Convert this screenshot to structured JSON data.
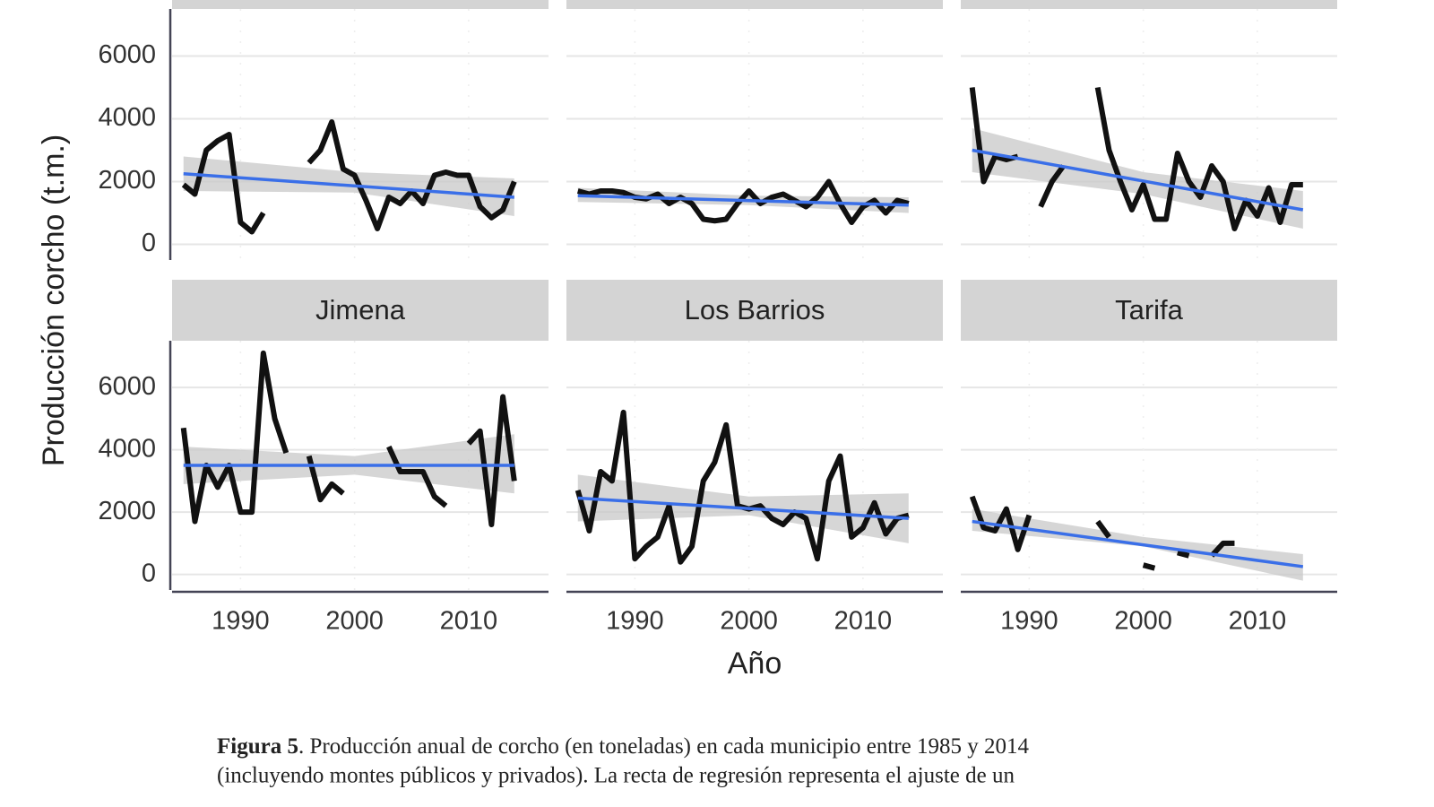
{
  "chart_data": [
    {
      "type": "line",
      "x": [
        1985,
        1986,
        1987,
        1988,
        1989,
        1990,
        1991,
        1992,
        1993,
        1994,
        1995,
        1996,
        1997,
        1998,
        1999,
        2000,
        2001,
        2002,
        2003,
        2004,
        2005,
        2006,
        2007,
        2008,
        2009,
        2010,
        2011,
        2012,
        2013,
        2014
      ],
      "values": [
        1900,
        1600,
        3000,
        3300,
        3500,
        700,
        400,
        1000,
        null,
        null,
        null,
        2600,
        3000,
        3900,
        2400,
        2200,
        1400,
        500,
        1500,
        1300,
        1700,
        1300,
        2200,
        2300,
        2200,
        2200,
        1200,
        850,
        1100,
        2000
      ],
      "color": "#111111",
      "trend": {
        "x": [
          1985,
          2014
        ],
        "values": [
          2250,
          1500
        ],
        "color": "#3a6fe8"
      },
      "band": {
        "x": [
          1985,
          2000,
          2014
        ],
        "lower": [
          1700,
          1650,
          900
        ],
        "upper": [
          2800,
          2300,
          2100
        ]
      },
      "xlim": [
        1984,
        2017
      ],
      "ylim": [
        -500,
        7500
      ],
      "xticks": [
        1990,
        2000,
        2010
      ],
      "yticks": [
        0,
        2000,
        4000,
        6000
      ],
      "grid": true
    },
    {
      "type": "line",
      "x": [
        1985,
        1986,
        1987,
        1988,
        1989,
        1990,
        1991,
        1992,
        1993,
        1994,
        1995,
        1996,
        1997,
        1998,
        1999,
        2000,
        2001,
        2002,
        2003,
        2004,
        2005,
        2006,
        2007,
        2008,
        2009,
        2010,
        2011,
        2012,
        2013,
        2014
      ],
      "values": [
        1700,
        1600,
        1700,
        1700,
        1650,
        1500,
        1450,
        1600,
        1300,
        1500,
        1300,
        800,
        750,
        800,
        1300,
        1700,
        1300,
        1500,
        1600,
        1400,
        1200,
        1500,
        2000,
        1300,
        700,
        1200,
        1400,
        1000,
        1400,
        1300
      ],
      "color": "#111111",
      "trend": {
        "x": [
          1985,
          2014
        ],
        "values": [
          1550,
          1250
        ],
        "color": "#3a6fe8"
      },
      "band": {
        "x": [
          1985,
          2000,
          2014
        ],
        "lower": [
          1350,
          1250,
          1000
        ],
        "upper": [
          1800,
          1550,
          1500
        ]
      },
      "xlim": [
        1984,
        2017
      ],
      "ylim": [
        -500,
        7500
      ],
      "xticks": [
        1990,
        2000,
        2010
      ],
      "yticks": [
        0,
        2000,
        4000,
        6000
      ],
      "grid": true
    },
    {
      "type": "line",
      "x": [
        1985,
        1986,
        1987,
        1988,
        1989,
        1990,
        1991,
        1992,
        1993,
        1994,
        1995,
        1996,
        1997,
        1998,
        1999,
        2000,
        2001,
        2002,
        2003,
        2004,
        2005,
        2006,
        2007,
        2008,
        2009,
        2010,
        2011,
        2012,
        2013,
        2014
      ],
      "values": [
        5000,
        2000,
        2800,
        2700,
        2800,
        null,
        1200,
        2000,
        2500,
        null,
        null,
        5000,
        3000,
        2000,
        1100,
        1900,
        800,
        800,
        2900,
        2000,
        1500,
        2500,
        2000,
        500,
        1400,
        900,
        1800,
        700,
        1900,
        1900
      ],
      "color": "#111111",
      "trend": {
        "x": [
          1985,
          2014
        ],
        "values": [
          3000,
          1100
        ],
        "color": "#3a6fe8"
      },
      "band": {
        "x": [
          1985,
          2000,
          2014
        ],
        "lower": [
          2300,
          1600,
          500
        ],
        "upper": [
          3700,
          2300,
          1700
        ]
      },
      "xlim": [
        1984,
        2017
      ],
      "ylim": [
        -500,
        7500
      ],
      "xticks": [
        1990,
        2000,
        2010
      ],
      "yticks": [
        0,
        2000,
        4000,
        6000
      ],
      "grid": true
    },
    {
      "type": "line",
      "title": "Jimena",
      "x": [
        1985,
        1986,
        1987,
        1988,
        1989,
        1990,
        1991,
        1992,
        1993,
        1994,
        1995,
        1996,
        1997,
        1998,
        1999,
        2000,
        2001,
        2002,
        2003,
        2004,
        2005,
        2006,
        2007,
        2008,
        2009,
        2010,
        2011,
        2012,
        2013,
        2014
      ],
      "values": [
        4700,
        1700,
        3500,
        2800,
        3500,
        2000,
        2000,
        7100,
        5000,
        3900,
        null,
        3800,
        2400,
        2900,
        2600,
        null,
        null,
        null,
        4100,
        3300,
        3300,
        3300,
        2500,
        2200,
        null,
        4200,
        4600,
        1600,
        5700,
        3000
      ],
      "color": "#111111",
      "trend": {
        "x": [
          1985,
          2014
        ],
        "values": [
          3500,
          3500
        ],
        "color": "#3a6fe8"
      },
      "band": {
        "x": [
          1985,
          2000,
          2014
        ],
        "lower": [
          2900,
          3200,
          2600
        ],
        "upper": [
          4100,
          3800,
          4500
        ]
      },
      "xlim": [
        1984,
        2017
      ],
      "ylim": [
        -500,
        7500
      ],
      "xticks": [
        1990,
        2000,
        2010
      ],
      "yticks": [
        0,
        2000,
        4000,
        6000
      ],
      "grid": true
    },
    {
      "type": "line",
      "title": "Los Barrios",
      "x": [
        1985,
        1986,
        1987,
        1988,
        1989,
        1990,
        1991,
        1992,
        1993,
        1994,
        1995,
        1996,
        1997,
        1998,
        1999,
        2000,
        2001,
        2002,
        2003,
        2004,
        2005,
        2006,
        2007,
        2008,
        2009,
        2010,
        2011,
        2012,
        2013,
        2014
      ],
      "values": [
        2700,
        1400,
        3300,
        3000,
        5200,
        500,
        900,
        1200,
        2200,
        400,
        900,
        3000,
        3600,
        4800,
        2200,
        2100,
        2200,
        1800,
        1600,
        2000,
        1800,
        500,
        3000,
        3800,
        1200,
        1500,
        2300,
        1300,
        1800,
        1900
      ],
      "color": "#111111",
      "trend": {
        "x": [
          1985,
          2014
        ],
        "values": [
          2450,
          1800
        ],
        "color": "#3a6fe8"
      },
      "band": {
        "x": [
          1985,
          2000,
          2014
        ],
        "lower": [
          1700,
          1900,
          1000
        ],
        "upper": [
          3200,
          2500,
          2600
        ]
      },
      "xlim": [
        1984,
        2017
      ],
      "ylim": [
        -500,
        7500
      ],
      "xticks": [
        1990,
        2000,
        2010
      ],
      "yticks": [
        0,
        2000,
        4000,
        6000
      ],
      "grid": true
    },
    {
      "type": "line",
      "title": "Tarifa",
      "x": [
        1985,
        1986,
        1987,
        1988,
        1989,
        1990,
        1991,
        1992,
        1993,
        1994,
        1995,
        1996,
        1997,
        1998,
        1999,
        2000,
        2001,
        2002,
        2003,
        2004,
        2005,
        2006,
        2007,
        2008,
        2009,
        2010,
        2011,
        2012,
        2013,
        2014
      ],
      "values": [
        2500,
        1500,
        1400,
        2100,
        800,
        1900,
        null,
        null,
        null,
        null,
        null,
        1700,
        1200,
        null,
        null,
        300,
        200,
        null,
        700,
        600,
        null,
        600,
        1000,
        1000,
        null,
        null,
        null,
        null,
        null,
        null
      ],
      "color": "#111111",
      "trend": {
        "x": [
          1985,
          2014
        ],
        "values": [
          1700,
          250
        ],
        "color": "#3a6fe8"
      },
      "band": {
        "x": [
          1985,
          2000,
          2014
        ],
        "lower": [
          1400,
          900,
          -200
        ],
        "upper": [
          2100,
          1200,
          650
        ]
      },
      "xlim": [
        1984,
        2017
      ],
      "ylim": [
        -500,
        7500
      ],
      "xticks": [
        1990,
        2000,
        2010
      ],
      "yticks": [
        0,
        2000,
        4000,
        6000
      ],
      "grid": true
    }
  ],
  "axis_labels": {
    "y": "Producción corcho (t.m.)",
    "x": "Año"
  },
  "caption": {
    "label": "Figura 5",
    "line1": ". Producción anual de corcho (en toneladas) en cada municipio entre 1985 y 2014",
    "line2": "(incluyendo montes públicos y privados). La recta de regresión representa el ajuste de un"
  }
}
